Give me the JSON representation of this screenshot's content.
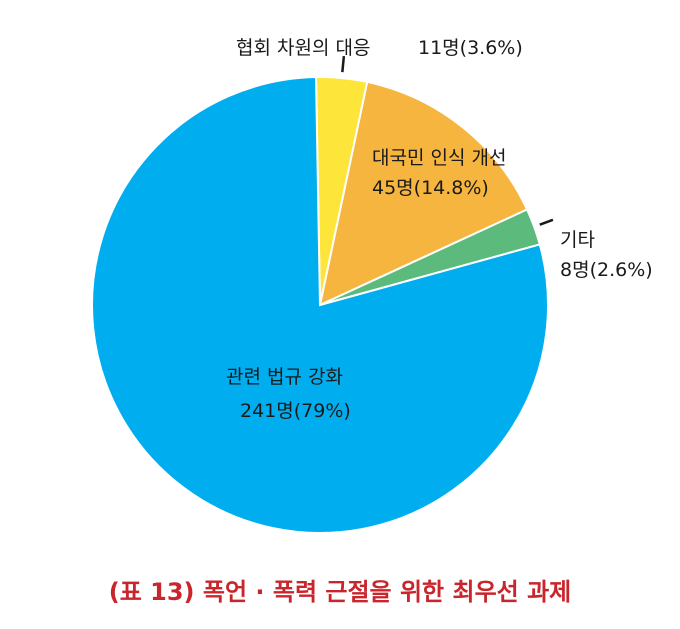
{
  "chart_data": {
    "type": "pie",
    "title": "(표 13) 폭언 · 폭력 근절을 위한 최우선 과제",
    "slices": [
      {
        "name": "협회 차원의 대응",
        "count_label": "11명(3.6%)",
        "value": 3.6,
        "color": "#fde53a"
      },
      {
        "name": "대국민 인식 개선",
        "count_label": "45명(14.8%)",
        "value": 14.8,
        "color": "#f6b53f"
      },
      {
        "name": "기타",
        "count_label": "8명(2.6%)",
        "value": 2.6,
        "color": "#5cbb7c"
      },
      {
        "name": "관련 법규 강화",
        "count_label": "241명(79%)",
        "value": 79,
        "color": "#00aeef"
      }
    ]
  }
}
